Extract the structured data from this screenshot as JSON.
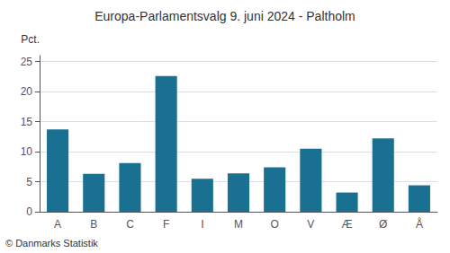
{
  "chart_data": {
    "type": "bar",
    "title": "Europa-Parlamentsvalg 9. juni 2024 - Paltholm",
    "ylabel": "Pct.",
    "annotation": "© Danmarks Statistik",
    "categories": [
      "A",
      "B",
      "C",
      "F",
      "I",
      "M",
      "O",
      "V",
      "Æ",
      "Ø",
      "Å"
    ],
    "values": [
      13.7,
      6.3,
      8.1,
      22.6,
      5.5,
      6.4,
      7.4,
      10.5,
      3.2,
      12.2,
      4.4
    ],
    "color": "#1a7090",
    "ylim": [
      0,
      26
    ],
    "yticks": [
      0,
      5,
      10,
      15,
      20,
      25
    ],
    "grid": true
  }
}
